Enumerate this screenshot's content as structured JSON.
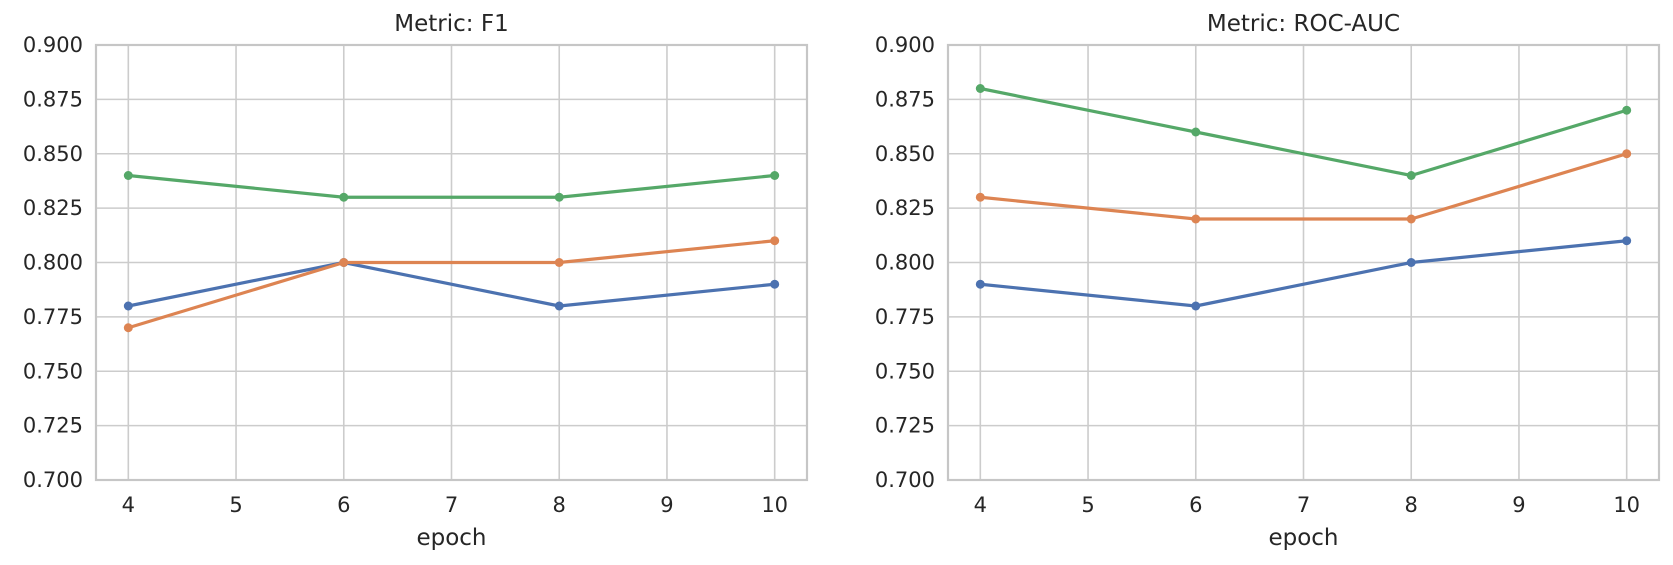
{
  "figure": {
    "background_color": "#ffffff",
    "grid_color": "#cccccc",
    "text_color": "#262626"
  },
  "chart_data": [
    {
      "type": "line",
      "title": "Metric: F1",
      "xlabel": "epoch",
      "ylabel": "",
      "x": [
        4,
        6,
        8,
        10
      ],
      "xticks": [
        4,
        5,
        6,
        7,
        8,
        9,
        10
      ],
      "yticks": [
        "0.700",
        "0.725",
        "0.750",
        "0.775",
        "0.800",
        "0.825",
        "0.850",
        "0.875",
        "0.900"
      ],
      "xlim": [
        3.7,
        10.3
      ],
      "ylim": [
        0.7,
        0.9
      ],
      "grid": true,
      "legend": "none",
      "marker": "circle",
      "series": [
        {
          "color": "#4c72b0",
          "values": [
            0.78,
            0.8,
            0.78,
            0.79
          ]
        },
        {
          "color": "#dd8452",
          "values": [
            0.77,
            0.8,
            0.8,
            0.81
          ]
        },
        {
          "color": "#55a868",
          "values": [
            0.84,
            0.83,
            0.83,
            0.84
          ]
        }
      ]
    },
    {
      "type": "line",
      "title": "Metric: ROC-AUC",
      "xlabel": "epoch",
      "ylabel": "",
      "x": [
        4,
        6,
        8,
        10
      ],
      "xticks": [
        4,
        5,
        6,
        7,
        8,
        9,
        10
      ],
      "yticks": [
        "0.700",
        "0.725",
        "0.750",
        "0.775",
        "0.800",
        "0.825",
        "0.850",
        "0.875",
        "0.900"
      ],
      "xlim": [
        3.7,
        10.3
      ],
      "ylim": [
        0.7,
        0.9
      ],
      "grid": true,
      "legend": "none",
      "marker": "circle",
      "series": [
        {
          "color": "#4c72b0",
          "values": [
            0.79,
            0.78,
            0.8,
            0.81
          ]
        },
        {
          "color": "#dd8452",
          "values": [
            0.83,
            0.82,
            0.82,
            0.85
          ]
        },
        {
          "color": "#55a868",
          "values": [
            0.88,
            0.86,
            0.84,
            0.87
          ]
        }
      ]
    }
  ]
}
